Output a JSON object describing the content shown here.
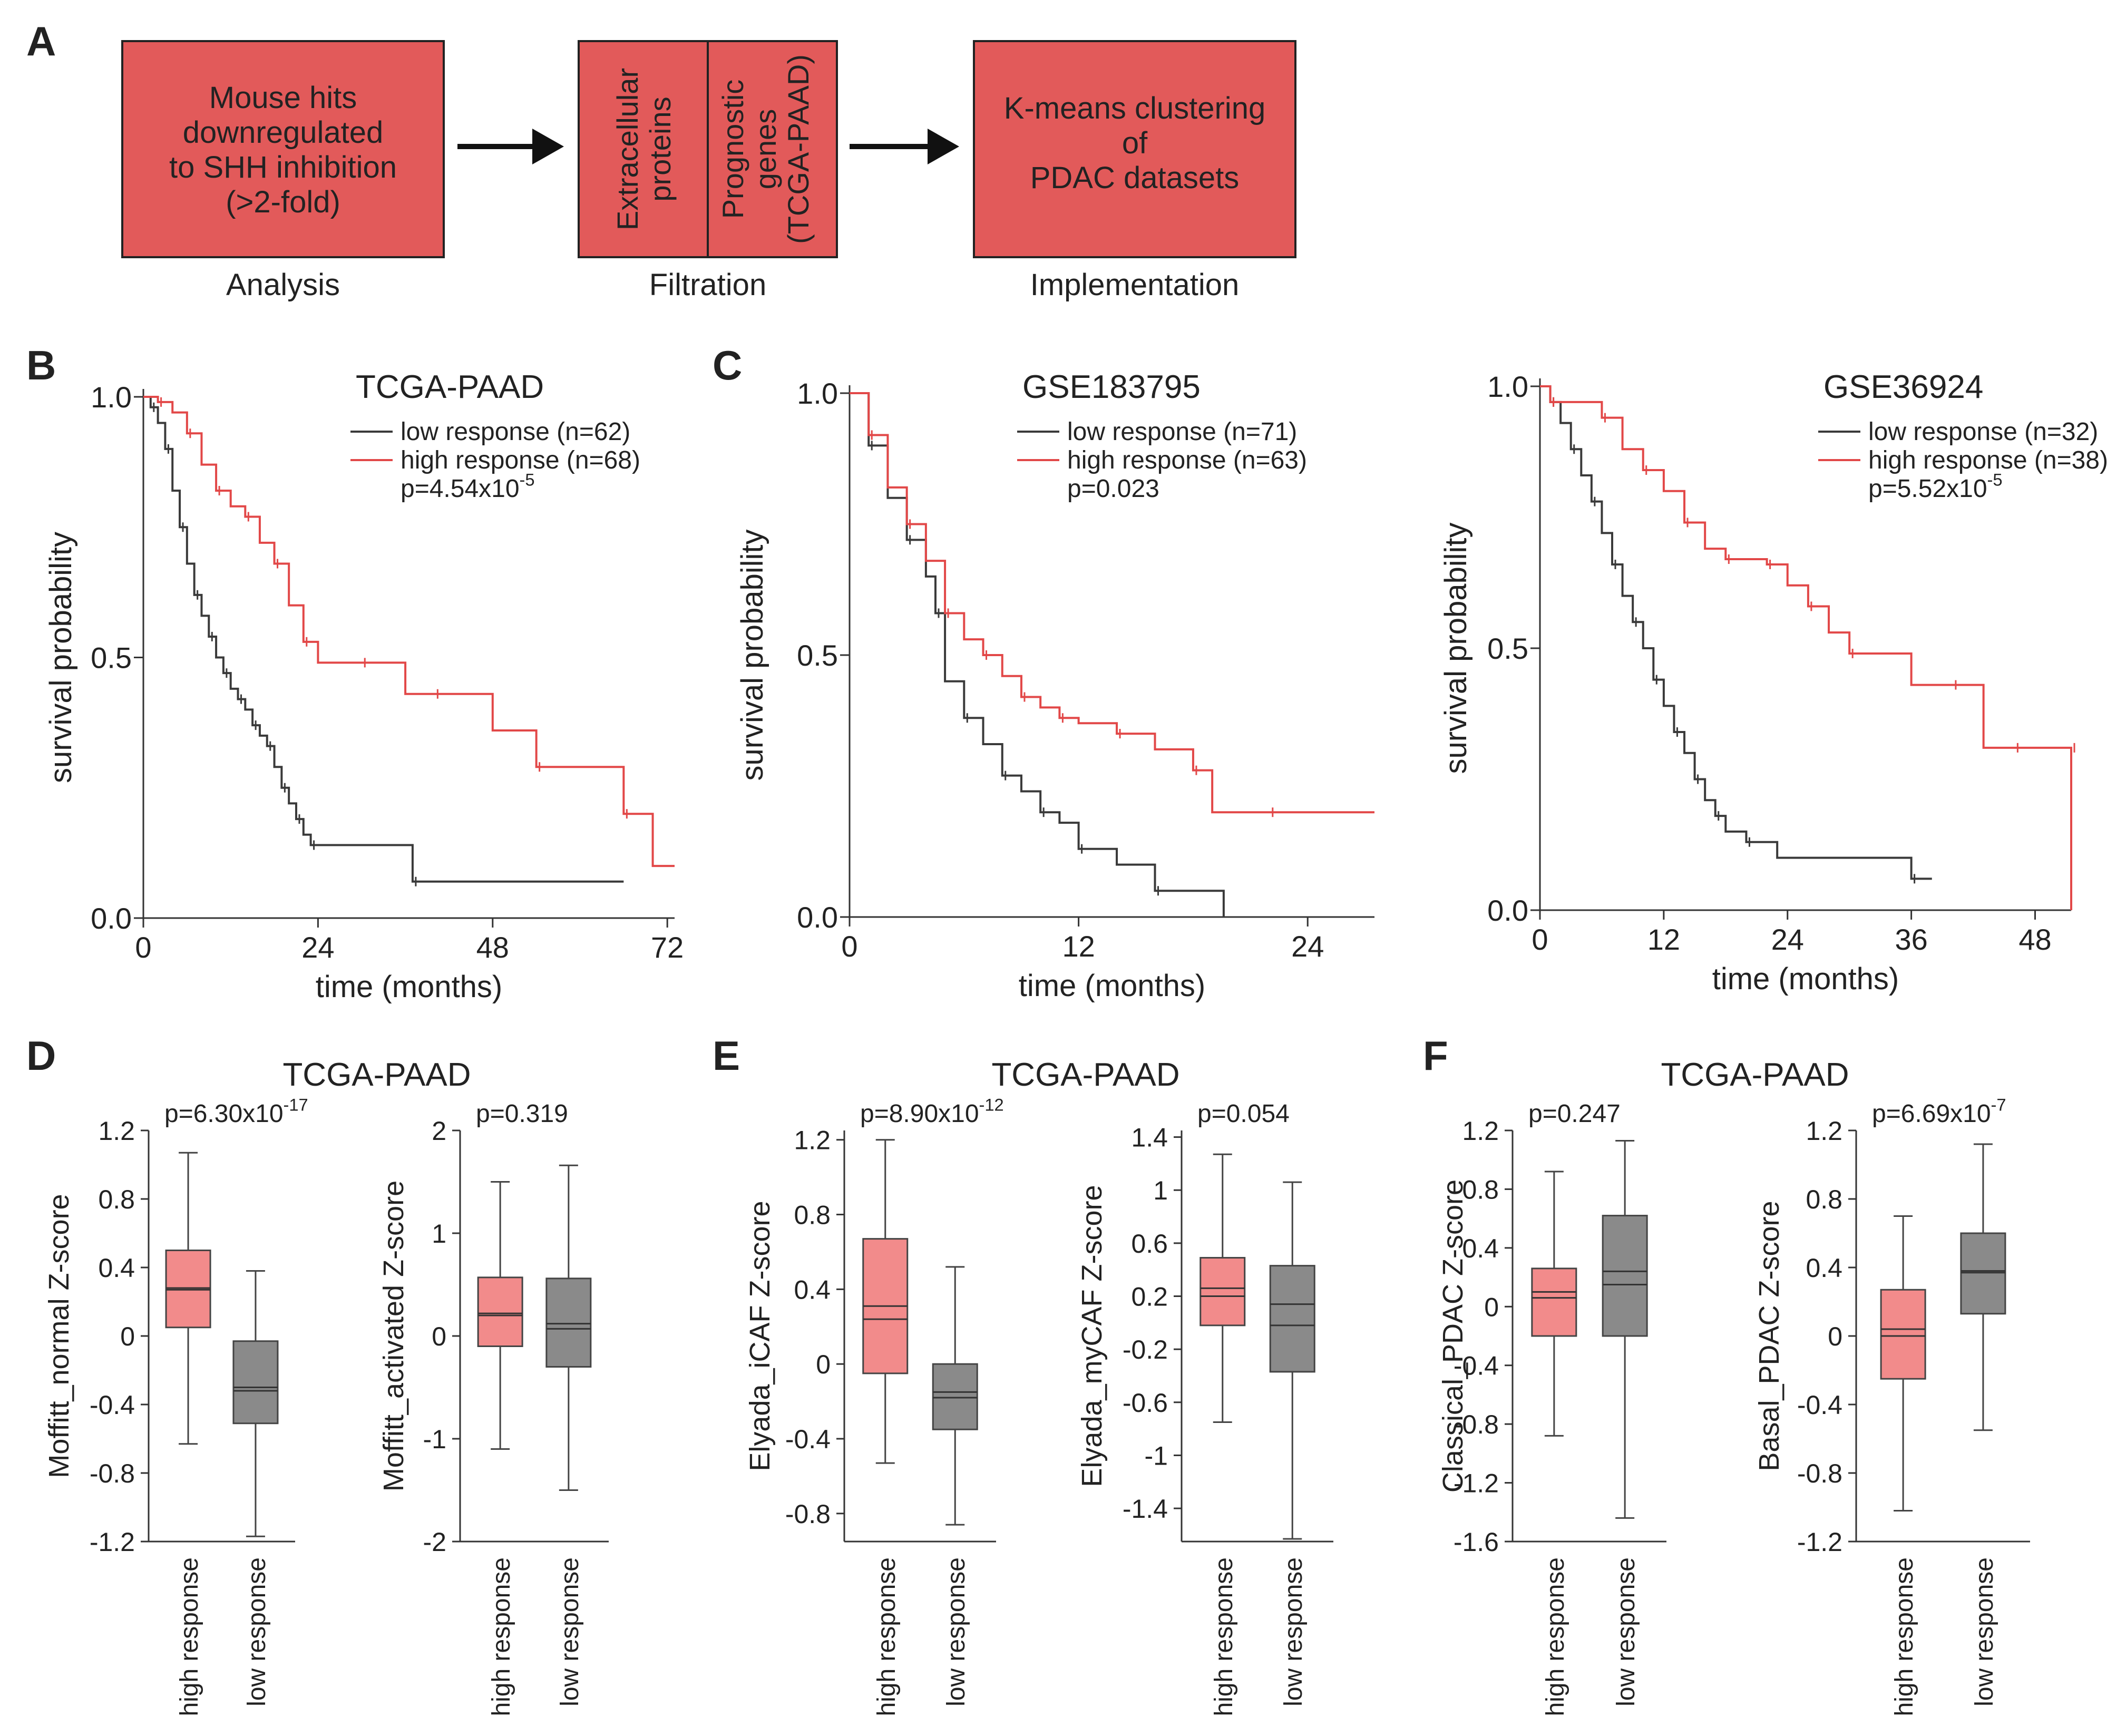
{
  "colors": {
    "box_fill": "#e25a5a",
    "box_stroke": "#222222",
    "high": "#e24848",
    "low": "#3a3a3a",
    "high_box": "#f28b8b",
    "low_box": "#8a8a8a",
    "arrow": "#111111"
  },
  "panel_labels": [
    "A",
    "B",
    "C",
    "D",
    "E",
    "F"
  ],
  "flow": {
    "box1": [
      "Mouse hits",
      "downregulated",
      "to SHH inhibition",
      "(>2-fold)"
    ],
    "box2_left": [
      "Extracellular",
      "proteins"
    ],
    "box2_right": [
      "Prognostic",
      "genes",
      "(TCGA-PAAD)"
    ],
    "box3": [
      "K-means clustering",
      "of",
      "PDAC datasets"
    ],
    "captions": [
      "Analysis",
      "Filtration",
      "Implementation"
    ]
  },
  "chart_data": [
    {
      "id": "km_tcga",
      "type": "line",
      "title": "TCGA-PAAD",
      "xlabel": "time (months)",
      "ylabel": "survival probability",
      "xlim": [
        0,
        73
      ],
      "ylim": [
        0,
        1.0
      ],
      "xticks": [
        0,
        24,
        48,
        72
      ],
      "yticks": [
        "0.0",
        "0.5",
        "1.0"
      ],
      "legend": [
        "low response (n=62)",
        "high response (n=68)"
      ],
      "p_prefix": "p=4.54x10",
      "p_exp": "-5",
      "series": [
        {
          "name": "low response (n=62)",
          "color": "low",
          "x": [
            0,
            1,
            2,
            3,
            4,
            5,
            6,
            7,
            8,
            9,
            10,
            11,
            12,
            13,
            14,
            15,
            16,
            17,
            18,
            19,
            20,
            21,
            22,
            23,
            24,
            37,
            66
          ],
          "y": [
            1.0,
            0.98,
            0.95,
            0.9,
            0.82,
            0.75,
            0.68,
            0.62,
            0.58,
            0.54,
            0.5,
            0.47,
            0.44,
            0.42,
            0.4,
            0.37,
            0.35,
            0.33,
            0.29,
            0.25,
            0.22,
            0.19,
            0.16,
            0.14,
            0.14,
            0.07,
            0.07
          ]
        },
        {
          "name": "high response (n=68)",
          "color": "high",
          "x": [
            0,
            2,
            4,
            6,
            8,
            10,
            12,
            14,
            16,
            18,
            20,
            22,
            24,
            30,
            36,
            40,
            48,
            54,
            62,
            66,
            70,
            73
          ],
          "y": [
            1.0,
            0.99,
            0.97,
            0.93,
            0.87,
            0.82,
            0.79,
            0.77,
            0.72,
            0.68,
            0.6,
            0.53,
            0.49,
            0.49,
            0.43,
            0.43,
            0.36,
            0.29,
            0.29,
            0.2,
            0.1,
            0.1
          ]
        }
      ]
    },
    {
      "id": "km_gse183795",
      "type": "line",
      "title": "GSE183795",
      "xlabel": "time (months)",
      "ylabel": "survival probability",
      "xlim": [
        0,
        27.5
      ],
      "ylim": [
        0,
        1.0
      ],
      "xticks": [
        0,
        12,
        24
      ],
      "yticks": [
        "0.0",
        "0.5",
        "1.0"
      ],
      "legend": [
        "low response (n=71)",
        "high response (n=63)"
      ],
      "p_text": "p=0.023",
      "series": [
        {
          "name": "low response (n=71)",
          "color": "low",
          "x": [
            0,
            1,
            2,
            3,
            4,
            4.5,
            5,
            6,
            7,
            8,
            9,
            10,
            11,
            12,
            14,
            16,
            19.6
          ],
          "y": [
            1.0,
            0.9,
            0.8,
            0.72,
            0.65,
            0.58,
            0.45,
            0.38,
            0.33,
            0.27,
            0.24,
            0.2,
            0.18,
            0.13,
            0.1,
            0.05,
            0.0
          ]
        },
        {
          "name": "high response (n=63)",
          "color": "high",
          "x": [
            0,
            1,
            2,
            3,
            4,
            5,
            6,
            7,
            8,
            9,
            10,
            11,
            12,
            14,
            16,
            18,
            19,
            22,
            24,
            27.5
          ],
          "y": [
            1.0,
            0.92,
            0.82,
            0.75,
            0.68,
            0.58,
            0.53,
            0.5,
            0.46,
            0.42,
            0.4,
            0.38,
            0.37,
            0.35,
            0.32,
            0.28,
            0.2,
            0.2,
            0.2,
            0.2
          ]
        }
      ]
    },
    {
      "id": "km_gse36924",
      "type": "line",
      "title": "GSE36924",
      "xlabel": "time (months)",
      "ylabel": "survival probability",
      "xlim": [
        0,
        51.5
      ],
      "ylim": [
        0,
        1.0
      ],
      "xticks": [
        0,
        12,
        24,
        36,
        48
      ],
      "yticks": [
        "0.0",
        "0.5",
        "1.0"
      ],
      "legend": [
        "low response (n=32)",
        "high response (n=38)"
      ],
      "p_prefix": "p=5.52x10",
      "p_exp": "-5",
      "series": [
        {
          "name": "low response (n=32)",
          "color": "low",
          "x": [
            0,
            1,
            2,
            3,
            4,
            5,
            6,
            7,
            8,
            9,
            10,
            11,
            12,
            13,
            14,
            15,
            16,
            17,
            18,
            20,
            23,
            36,
            38
          ],
          "y": [
            1.0,
            0.97,
            0.93,
            0.88,
            0.83,
            0.78,
            0.72,
            0.66,
            0.6,
            0.55,
            0.5,
            0.44,
            0.39,
            0.34,
            0.3,
            0.25,
            0.21,
            0.18,
            0.15,
            0.13,
            0.1,
            0.06,
            0.06
          ]
        },
        {
          "name": "high response (n=38)",
          "color": "high",
          "x": [
            0,
            1,
            4,
            6,
            8,
            10,
            12,
            14,
            16,
            18,
            20,
            22,
            24,
            26,
            28,
            30,
            36,
            40,
            43,
            46,
            48,
            51.5,
            51.5
          ],
          "y": [
            1.0,
            0.97,
            0.97,
            0.94,
            0.88,
            0.84,
            0.8,
            0.74,
            0.69,
            0.67,
            0.67,
            0.66,
            0.62,
            0.58,
            0.53,
            0.49,
            0.43,
            0.43,
            0.31,
            0.31,
            0.31,
            0.31,
            0.0
          ]
        }
      ]
    },
    {
      "id": "box_moffitt_normal",
      "type": "box",
      "group_title": "TCGA-PAAD",
      "ylabel": "Moffitt_normal  Z-score",
      "ylim": [
        -1.2,
        1.2
      ],
      "yticks": [
        "-1.2",
        "-0.8",
        "-0.4",
        "0",
        "0.4",
        "0.8",
        "1.2"
      ],
      "p_prefix": "p=6.30x10",
      "p_exp": "-17",
      "categories": [
        "high response",
        "low response"
      ],
      "boxes": [
        {
          "min": -0.63,
          "q1": 0.05,
          "median": 0.27,
          "q3": 0.5,
          "max": 1.07,
          "mean": 0.28
        },
        {
          "min": -1.17,
          "q1": -0.51,
          "median": -0.32,
          "q3": -0.03,
          "max": 0.38,
          "mean": -0.3
        }
      ]
    },
    {
      "id": "box_moffitt_activated",
      "type": "box",
      "ylabel": "Moffitt_activated  Z-score",
      "ylim": [
        -2,
        2
      ],
      "yticks": [
        "-2",
        "-1",
        "0",
        "1",
        "2"
      ],
      "p_text": "p=0.319",
      "categories": [
        "high response",
        "low response"
      ],
      "boxes": [
        {
          "min": -1.1,
          "q1": -0.1,
          "median": 0.2,
          "q3": 0.57,
          "max": 1.5,
          "mean": 0.22
        },
        {
          "min": -1.5,
          "q1": -0.3,
          "median": 0.12,
          "q3": 0.56,
          "max": 1.66,
          "mean": 0.07
        }
      ]
    },
    {
      "id": "box_elyada_icaf",
      "type": "box",
      "group_title": "TCGA-PAAD",
      "ylabel": "Elyada_iCAF Z-score",
      "ylim": [
        -0.95,
        1.25
      ],
      "yticks": [
        "-0.8",
        "-0.4",
        "0",
        "0.4",
        "0.8",
        "1.2"
      ],
      "p_prefix": "p=8.90x10",
      "p_exp": "-12",
      "categories": [
        "high response",
        "low response"
      ],
      "boxes": [
        {
          "min": -0.53,
          "q1": -0.05,
          "median": 0.24,
          "q3": 0.67,
          "max": 1.2,
          "mean": 0.31
        },
        {
          "min": -0.86,
          "q1": -0.35,
          "median": -0.18,
          "q3": 0.0,
          "max": 0.52,
          "mean": -0.15
        }
      ]
    },
    {
      "id": "box_elyada_mycaf",
      "type": "box",
      "ylabel": "Elyada_myCAF Z-score",
      "ylim": [
        -1.65,
        1.45
      ],
      "yticks": [
        "-1.4",
        "-1",
        "-0.6",
        "-0.2",
        "0.2",
        "0.6",
        "1",
        "1.4"
      ],
      "p_text": "p=0.054",
      "categories": [
        "high response",
        "low response"
      ],
      "boxes": [
        {
          "min": -0.75,
          "q1": -0.02,
          "median": 0.2,
          "q3": 0.49,
          "max": 1.27,
          "mean": 0.26
        },
        {
          "min": -1.63,
          "q1": -0.37,
          "median": -0.02,
          "q3": 0.43,
          "max": 1.06,
          "mean": 0.14
        }
      ]
    },
    {
      "id": "box_classical",
      "type": "box",
      "group_title": "TCGA-PAAD",
      "ylabel": "Classical_PDAC Z-score",
      "ylim": [
        -1.6,
        1.2
      ],
      "yticks": [
        "-1.6",
        "-1.2",
        "-0.8",
        "-0.4",
        "0",
        "0.4",
        "0.8",
        "1.2"
      ],
      "p_text": "p=0.247",
      "categories": [
        "high response",
        "low response"
      ],
      "boxes": [
        {
          "min": -0.88,
          "q1": -0.2,
          "median": 0.06,
          "q3": 0.26,
          "max": 0.92,
          "mean": 0.1
        },
        {
          "min": -1.44,
          "q1": -0.2,
          "median": 0.15,
          "q3": 0.62,
          "max": 1.13,
          "mean": 0.24
        }
      ]
    },
    {
      "id": "box_basal",
      "type": "box",
      "ylabel": "Basal_PDAC Z-score",
      "ylim": [
        -1.2,
        1.2
      ],
      "yticks": [
        "-1.2",
        "-0.8",
        "-0.4",
        "0",
        "0.4",
        "0.8",
        "1.2"
      ],
      "p_prefix": "p=6.69x10",
      "p_exp": "-7",
      "categories": [
        "high response",
        "low response"
      ],
      "boxes": [
        {
          "min": -1.02,
          "q1": -0.25,
          "median": 0.0,
          "q3": 0.27,
          "max": 0.7,
          "mean": 0.04
        },
        {
          "min": -0.55,
          "q1": 0.13,
          "median": 0.38,
          "q3": 0.6,
          "max": 1.12,
          "mean": 0.37
        }
      ]
    }
  ]
}
